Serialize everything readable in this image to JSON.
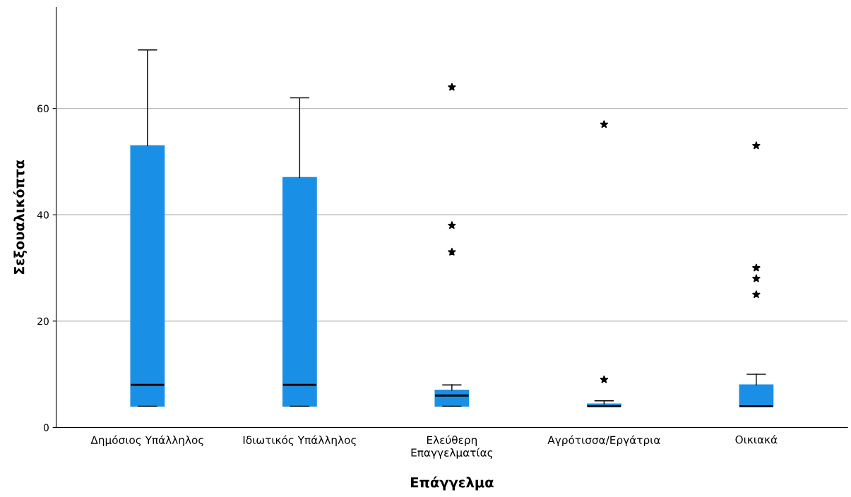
{
  "chart_data": {
    "type": "box",
    "xlabel": "Επάγγελμα",
    "ylabel": "Σεξουαλικόπτα",
    "categories": [
      "Δημόσιος Υπάλληλος",
      "Ιδιωτικός Υπάλληλος",
      "Ελεύθερη\nΕπαγγελματίας",
      "Αγρότισσα/Εργάτρια",
      "Οικιακά"
    ],
    "boxes": [
      {
        "low": 4,
        "q1": 4,
        "median": 8,
        "q3": 53,
        "high": 71
      },
      {
        "low": 4,
        "q1": 4,
        "median": 8,
        "q3": 47,
        "high": 62
      },
      {
        "low": 4,
        "q1": 4,
        "median": 6,
        "q3": 7,
        "high": 8,
        "outliers": [
          64,
          38,
          33
        ]
      },
      {
        "low": 4,
        "q1": 4,
        "median": 4,
        "q3": 4.4,
        "high": 5,
        "outliers": [
          57,
          9
        ]
      },
      {
        "low": 4,
        "q1": 4,
        "median": 4,
        "q3": 8,
        "high": 10,
        "outliers": [
          53,
          30,
          28,
          25
        ]
      }
    ],
    "color": "#1a8fe6",
    "marker": "star",
    "ylim": [
      0,
      79
    ],
    "yticks": [
      0,
      20,
      40,
      60
    ],
    "grid": "y"
  }
}
